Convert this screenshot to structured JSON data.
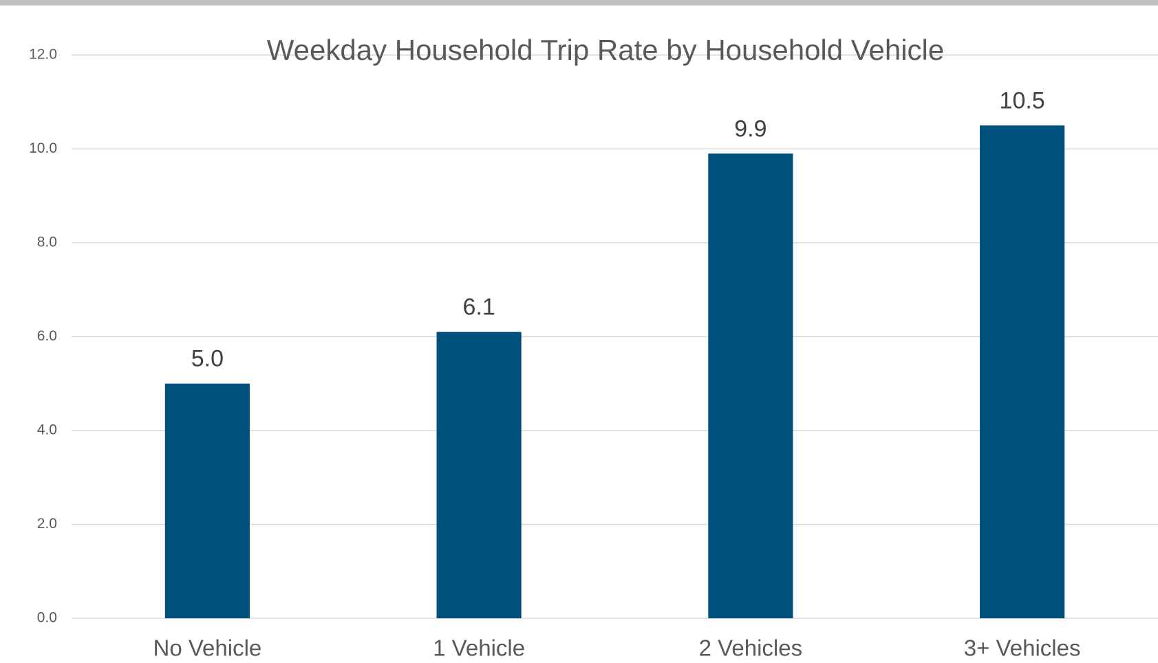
{
  "chart_data": {
    "type": "bar",
    "title": "Weekday Household Trip Rate by Household Vehicle",
    "categories": [
      "No Vehicle",
      "1 Vehicle",
      "2 Vehicles",
      "3+ Vehicles"
    ],
    "values": [
      5.0,
      6.1,
      9.9,
      10.5
    ],
    "value_labels": [
      "5.0",
      "6.1",
      "9.9",
      "10.5"
    ],
    "color": "#00507d",
    "ylim": [
      0,
      12
    ],
    "yticks": [
      {
        "value": 0,
        "label": "0.0"
      },
      {
        "value": 2,
        "label": "2.0"
      },
      {
        "value": 4,
        "label": "4.0"
      },
      {
        "value": 6,
        "label": "6.0"
      },
      {
        "value": 8,
        "label": "8.0"
      },
      {
        "value": 10,
        "label": "10.0"
      },
      {
        "value": 12,
        "label": "12.0"
      }
    ],
    "grid": true
  }
}
